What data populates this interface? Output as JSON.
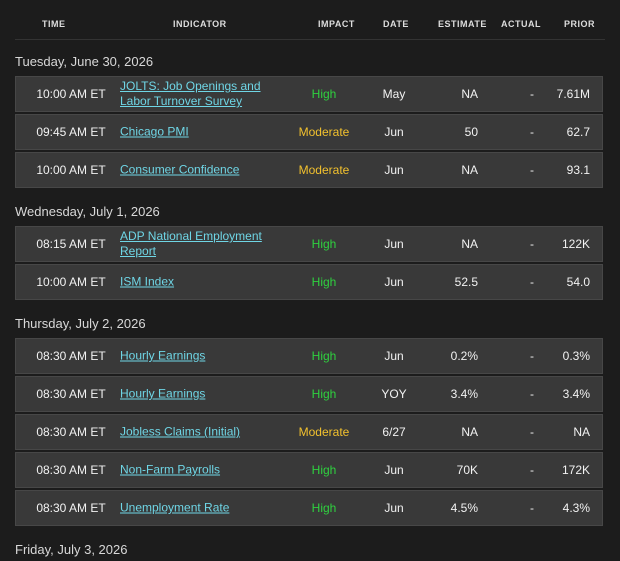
{
  "header": {
    "time": "TIME",
    "indicator": "INDICATOR",
    "impact": "IMPACT",
    "date": "DATE",
    "estimate": "ESTIMATE",
    "actual": "ACTUAL",
    "prior": "PRIOR"
  },
  "groups": [
    {
      "date": "Tuesday, June 30, 2026",
      "events": [
        {
          "time": "10:00 AM ET",
          "indicator": "JOLTS: Job Openings and Labor Turnover Survey",
          "impact": "High",
          "impact_color": "#2fd13f",
          "period": "May",
          "estimate": "NA",
          "actual": "-",
          "prior": "7.61M"
        },
        {
          "time": "09:45 AM ET",
          "indicator": "Chicago PMI",
          "impact": "Moderate",
          "impact_color": "#f2c12e",
          "period": "Jun",
          "estimate": "50",
          "actual": "-",
          "prior": "62.7"
        },
        {
          "time": "10:00 AM ET",
          "indicator": "Consumer Confidence",
          "impact": "Moderate",
          "impact_color": "#f2c12e",
          "period": "Jun",
          "estimate": "NA",
          "actual": "-",
          "prior": "93.1"
        }
      ]
    },
    {
      "date": "Wednesday, July 1, 2026",
      "events": [
        {
          "time": "08:15 AM ET",
          "indicator": "ADP National Employment Report",
          "impact": "High",
          "impact_color": "#2fd13f",
          "period": "Jun",
          "estimate": "NA",
          "actual": "-",
          "prior": "122K"
        },
        {
          "time": "10:00 AM ET",
          "indicator": "ISM Index",
          "impact": "High",
          "impact_color": "#2fd13f",
          "period": "Jun",
          "estimate": "52.5",
          "actual": "-",
          "prior": "54.0"
        }
      ]
    },
    {
      "date": "Thursday, July 2, 2026",
      "events": [
        {
          "time": "08:30 AM ET",
          "indicator": "Hourly Earnings",
          "impact": "High",
          "impact_color": "#2fd13f",
          "period": "Jun",
          "estimate": "0.2%",
          "actual": "-",
          "prior": "0.3%"
        },
        {
          "time": "08:30 AM ET",
          "indicator": "Hourly Earnings",
          "impact": "High",
          "impact_color": "#2fd13f",
          "period": "YOY",
          "estimate": "3.4%",
          "actual": "-",
          "prior": "3.4%"
        },
        {
          "time": "08:30 AM ET",
          "indicator": "Jobless Claims (Initial)",
          "impact": "Moderate",
          "impact_color": "#f2c12e",
          "period": "6/27",
          "estimate": "NA",
          "actual": "-",
          "prior": "NA"
        },
        {
          "time": "08:30 AM ET",
          "indicator": "Non-Farm Payrolls",
          "impact": "High",
          "impact_color": "#2fd13f",
          "period": "Jun",
          "estimate": "70K",
          "actual": "-",
          "prior": "172K"
        },
        {
          "time": "08:30 AM ET",
          "indicator": "Unemployment Rate",
          "impact": "High",
          "impact_color": "#2fd13f",
          "period": "Jun",
          "estimate": "4.5%",
          "actual": "-",
          "prior": "4.3%"
        }
      ]
    },
    {
      "date": "Friday, July 3, 2026",
      "events": []
    }
  ]
}
